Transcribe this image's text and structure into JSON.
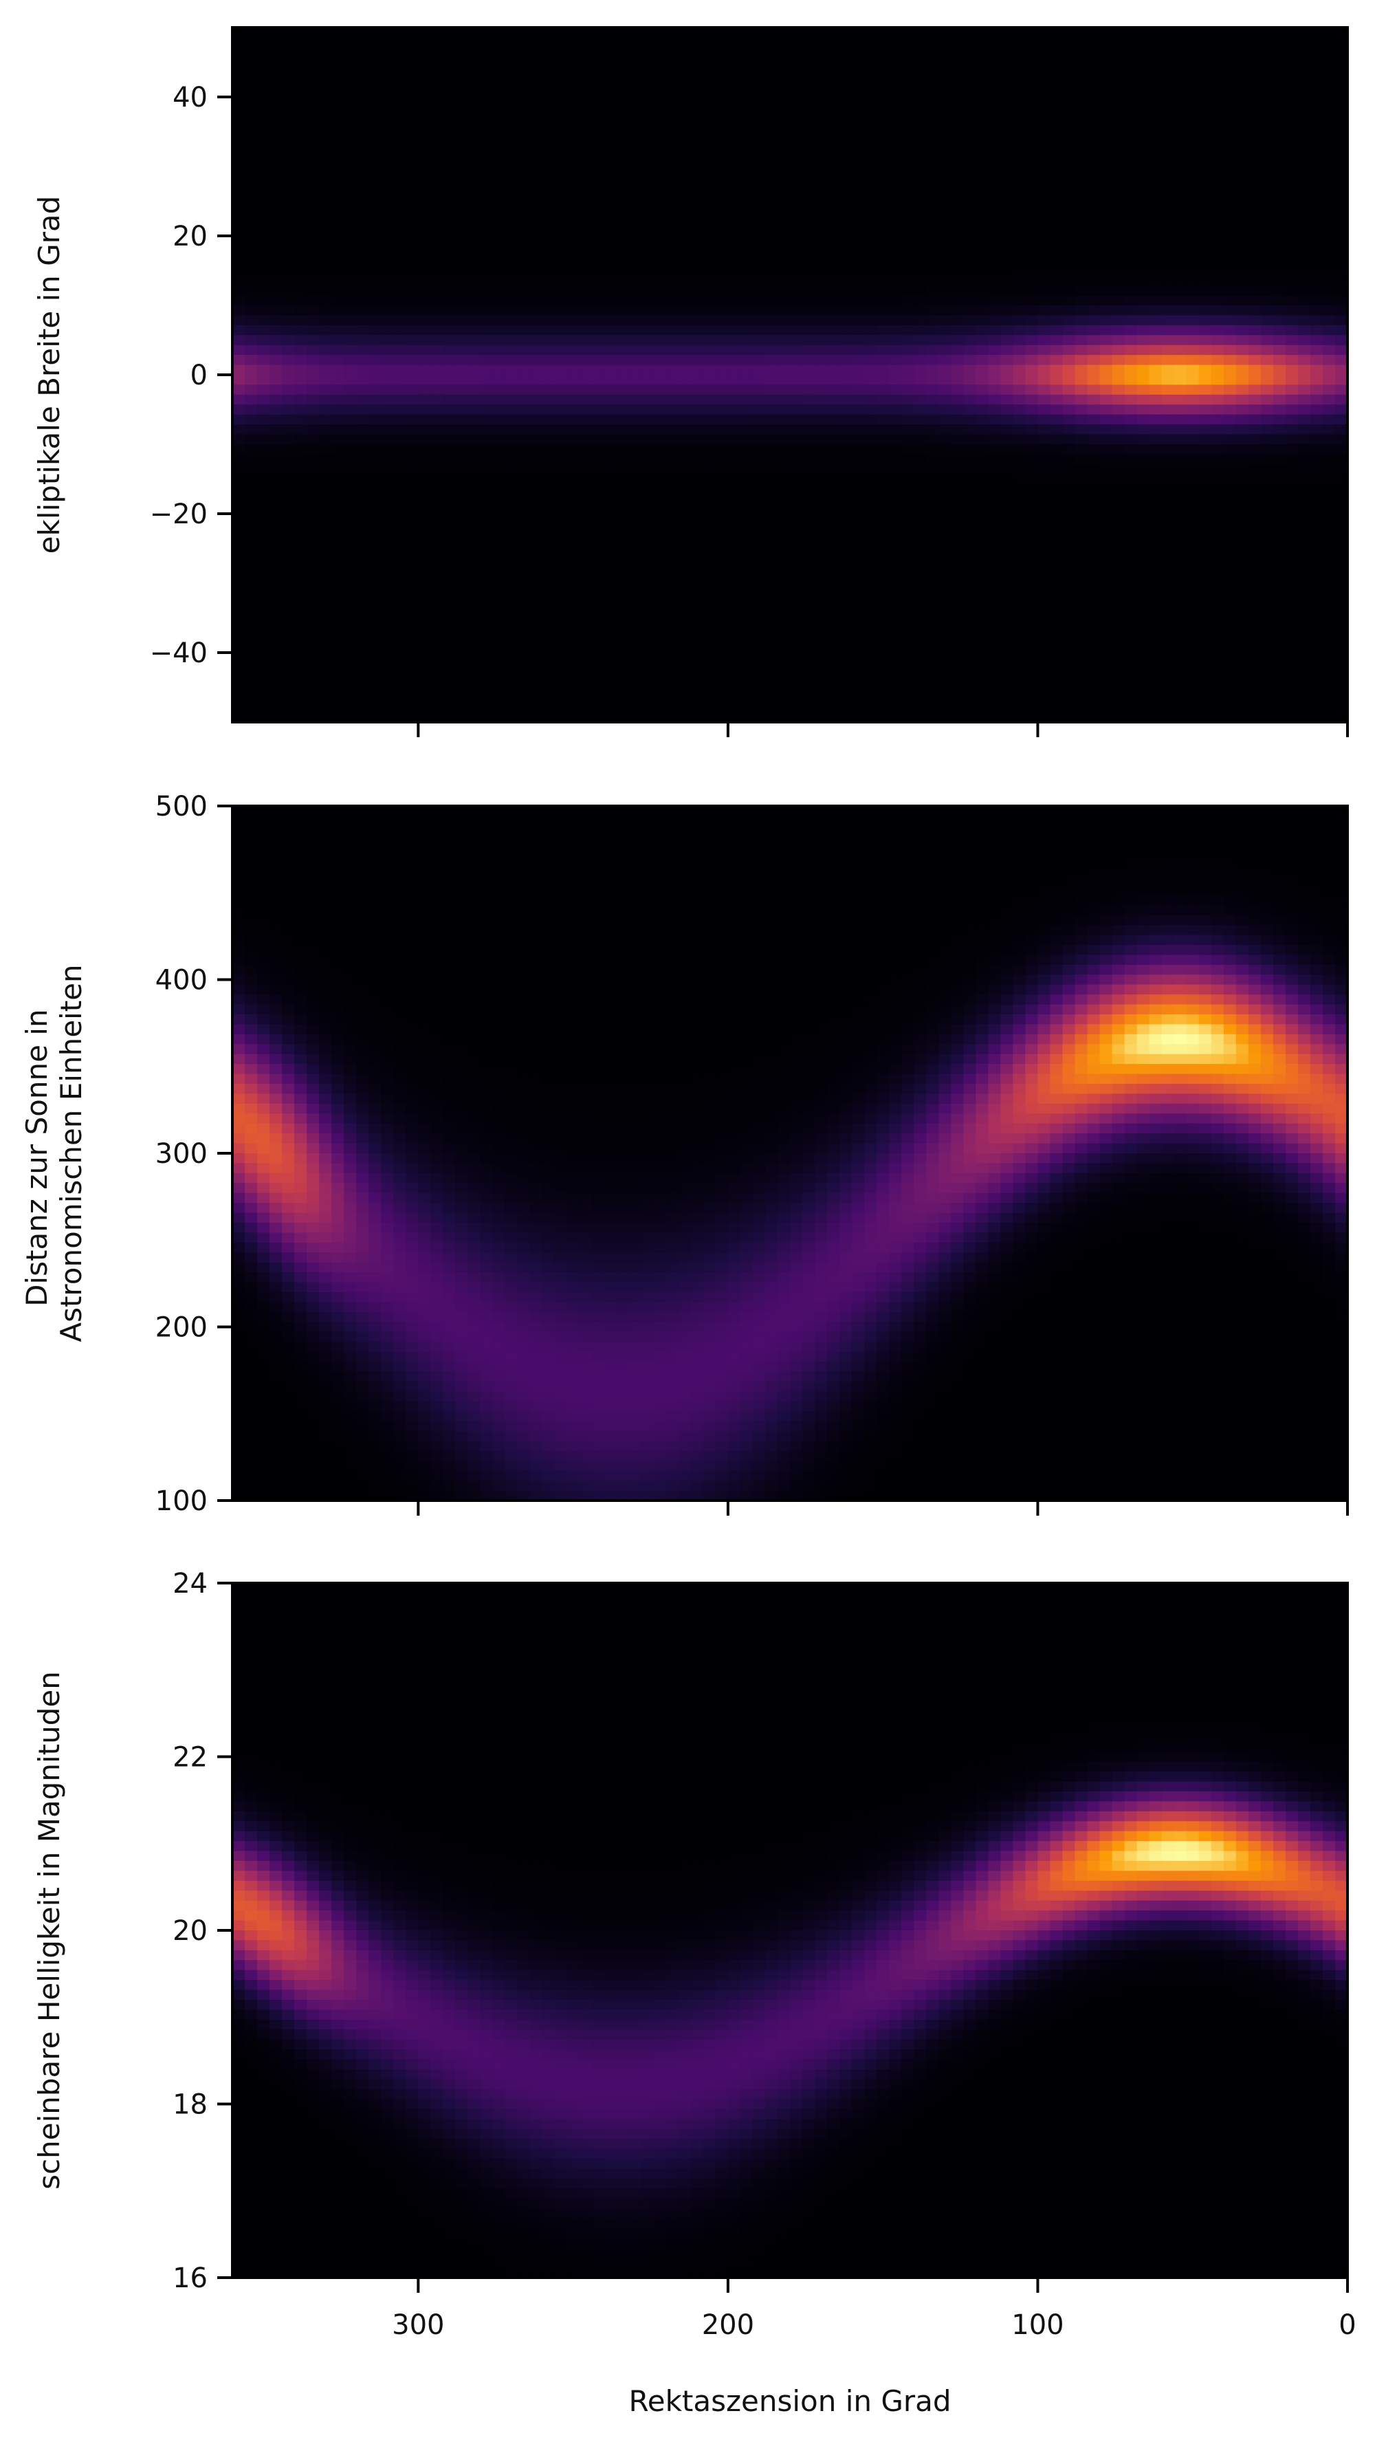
{
  "chart_data": [
    {
      "type": "heatmap",
      "panel": "top",
      "ylabel": "ekliptikale Breite in Grad",
      "xlim": [
        360,
        0
      ],
      "ylim": [
        -50,
        50
      ],
      "yticks": [
        40,
        20,
        0,
        -20,
        -40
      ],
      "ytick_labels": [
        "40",
        "20",
        "0",
        "−20",
        "−40"
      ],
      "xticks": [
        300,
        200,
        100,
        0
      ],
      "show_xtick_labels": false,
      "colormap": "inferno",
      "band": {
        "kind": "latitude",
        "center": 0,
        "extent": [
          -14,
          14
        ],
        "peak_ra": 55,
        "peak_lat": 0
      }
    },
    {
      "type": "heatmap",
      "panel": "middle",
      "ylabel": [
        "Distanz zur Sonne in",
        "Astronomischen Einheiten"
      ],
      "xlim": [
        360,
        0
      ],
      "ylim": [
        100,
        500
      ],
      "yticks": [
        500,
        400,
        300,
        200,
        100
      ],
      "ytick_labels": [
        "500",
        "400",
        "300",
        "200",
        "100"
      ],
      "xticks": [
        300,
        200,
        100,
        0
      ],
      "show_xtick_labels": false,
      "colormap": "inferno",
      "band": {
        "kind": "sinusoid",
        "mean": 265,
        "amplitude": 100,
        "phase_ra": 55,
        "peak_ra": 55,
        "peak_value": 365
      }
    },
    {
      "type": "heatmap",
      "panel": "bottom",
      "ylabel": "scheinbare Helligkeit in Magnituden",
      "xlabel": "Rektaszension in Grad",
      "xlim": [
        360,
        0
      ],
      "ylim": [
        16,
        24
      ],
      "yticks": [
        24,
        22,
        20,
        18,
        16
      ],
      "ytick_labels": [
        "24",
        "22",
        "20",
        "18",
        "16"
      ],
      "xticks": [
        300,
        200,
        100,
        0
      ],
      "xtick_labels": [
        "300",
        "200",
        "100",
        "0"
      ],
      "show_xtick_labels": true,
      "colormap": "inferno",
      "band": {
        "kind": "sinusoid",
        "mean": 19.55,
        "amplitude": 1.35,
        "phase_ra": 55,
        "peak_ra": 55,
        "peak_value": 20.9
      }
    }
  ]
}
